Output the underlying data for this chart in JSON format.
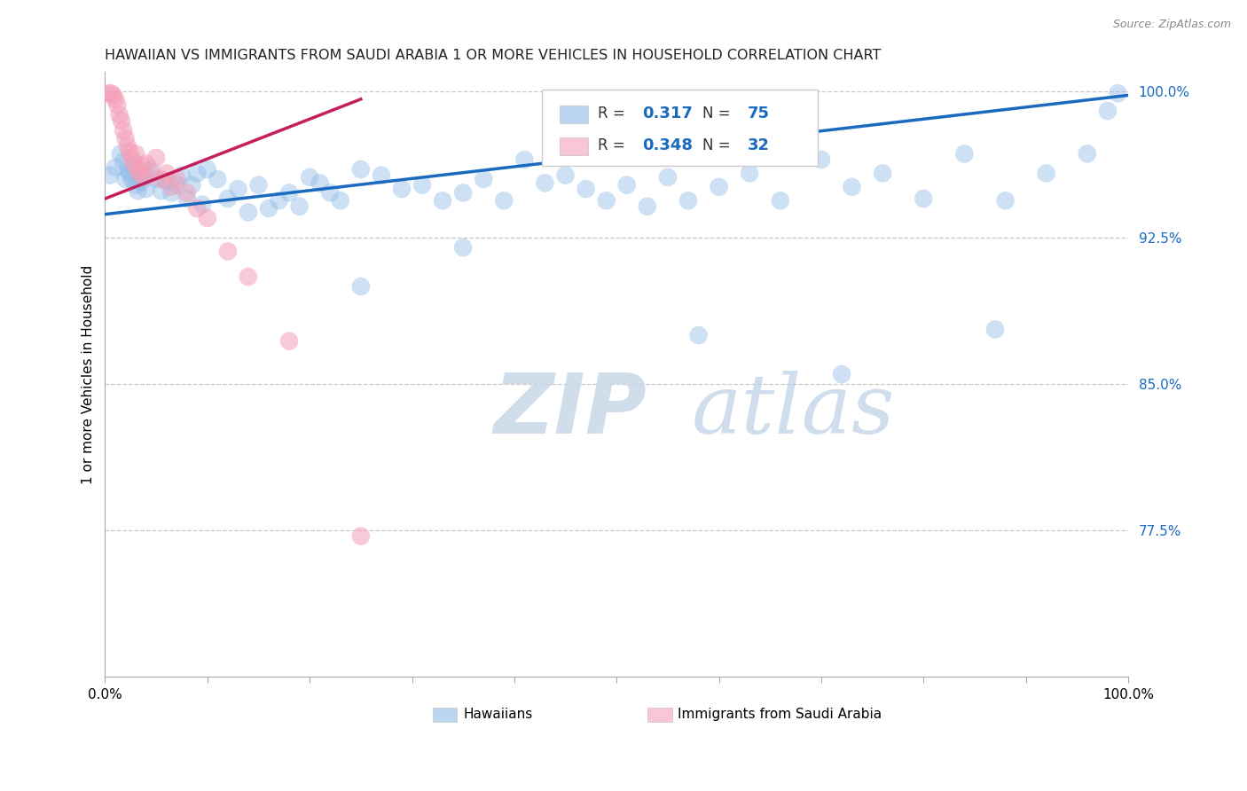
{
  "title": "HAWAIIAN VS IMMIGRANTS FROM SAUDI ARABIA 1 OR MORE VEHICLES IN HOUSEHOLD CORRELATION CHART",
  "source": "Source: ZipAtlas.com",
  "ylabel": "1 or more Vehicles in Household",
  "ytick_labels": [
    "100.0%",
    "92.5%",
    "85.0%",
    "77.5%"
  ],
  "ytick_values": [
    1.0,
    0.925,
    0.85,
    0.775
  ],
  "watermark_zip": "ZIP",
  "watermark_atlas": "atlas",
  "legend_label1": "Hawaiians",
  "legend_label2": "Immigrants from Saudi Arabia",
  "R_blue_val": "0.317",
  "N_blue_val": "75",
  "R_pink_val": "0.348",
  "N_pink_val": "32",
  "blue_color": "#90bce8",
  "pink_color": "#f4a0b8",
  "blue_line_color": "#1a6abf",
  "pink_line_color": "#c41e5c",
  "grid_color": "#c8c8c8",
  "blue_x": [
    0.005,
    0.01,
    0.015,
    0.018,
    0.02,
    0.022,
    0.024,
    0.026,
    0.028,
    0.03,
    0.032,
    0.034,
    0.036,
    0.038,
    0.04,
    0.045,
    0.05,
    0.055,
    0.06,
    0.065,
    0.07,
    0.075,
    0.08,
    0.085,
    0.09,
    0.095,
    0.1,
    0.11,
    0.12,
    0.13,
    0.14,
    0.15,
    0.16,
    0.17,
    0.18,
    0.19,
    0.2,
    0.21,
    0.22,
    0.23,
    0.25,
    0.27,
    0.29,
    0.31,
    0.33,
    0.35,
    0.37,
    0.39,
    0.41,
    0.43,
    0.45,
    0.47,
    0.49,
    0.51,
    0.53,
    0.55,
    0.57,
    0.6,
    0.63,
    0.66,
    0.7,
    0.73,
    0.76,
    0.8,
    0.84,
    0.88,
    0.92,
    0.96,
    0.98,
    0.99,
    0.25,
    0.35,
    0.58,
    0.72,
    0.87
  ],
  "blue_y": [
    0.957,
    0.961,
    0.968,
    0.964,
    0.955,
    0.96,
    0.958,
    0.955,
    0.962,
    0.952,
    0.949,
    0.956,
    0.954,
    0.958,
    0.95,
    0.96,
    0.955,
    0.949,
    0.954,
    0.948,
    0.952,
    0.957,
    0.945,
    0.952,
    0.958,
    0.942,
    0.96,
    0.955,
    0.945,
    0.95,
    0.938,
    0.952,
    0.94,
    0.944,
    0.948,
    0.941,
    0.956,
    0.953,
    0.948,
    0.944,
    0.96,
    0.957,
    0.95,
    0.952,
    0.944,
    0.948,
    0.955,
    0.944,
    0.965,
    0.953,
    0.957,
    0.95,
    0.944,
    0.952,
    0.941,
    0.956,
    0.944,
    0.951,
    0.958,
    0.944,
    0.965,
    0.951,
    0.958,
    0.945,
    0.968,
    0.944,
    0.958,
    0.968,
    0.99,
    0.999,
    0.9,
    0.92,
    0.875,
    0.855,
    0.878
  ],
  "pink_x": [
    0.003,
    0.006,
    0.008,
    0.01,
    0.012,
    0.014,
    0.016,
    0.018,
    0.02,
    0.022,
    0.024,
    0.026,
    0.028,
    0.03,
    0.032,
    0.034,
    0.036,
    0.038,
    0.04,
    0.045,
    0.05,
    0.055,
    0.06,
    0.065,
    0.07,
    0.08,
    0.09,
    0.1,
    0.12,
    0.14,
    0.18,
    0.25
  ],
  "pink_y": [
    0.999,
    0.999,
    0.998,
    0.996,
    0.993,
    0.988,
    0.985,
    0.98,
    0.976,
    0.972,
    0.969,
    0.966,
    0.963,
    0.968,
    0.96,
    0.958,
    0.962,
    0.956,
    0.963,
    0.958,
    0.966,
    0.955,
    0.958,
    0.951,
    0.955,
    0.948,
    0.94,
    0.935,
    0.918,
    0.905,
    0.872,
    0.772
  ],
  "blue_line_x0": 0.0,
  "blue_line_y0": 0.937,
  "blue_line_x1": 1.0,
  "blue_line_y1": 0.998,
  "pink_line_x0": 0.0,
  "pink_line_y0": 0.945,
  "pink_line_x1": 0.25,
  "pink_line_y1": 0.996,
  "xlim": [
    0.0,
    1.0
  ],
  "ylim": [
    0.7,
    1.01
  ]
}
